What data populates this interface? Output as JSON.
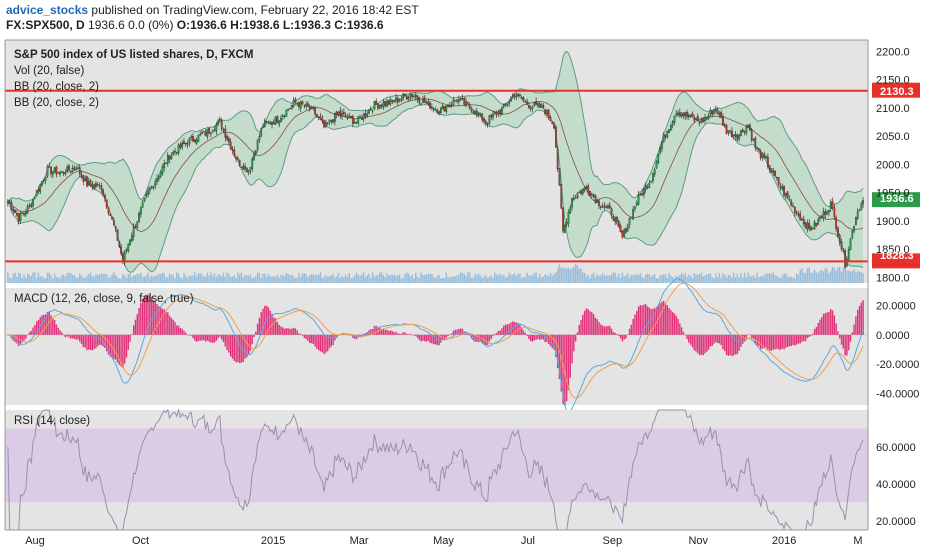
{
  "header": {
    "author": "advice_stocks",
    "published": "published on TradingView.com, February 22, 2016 18:42 EST",
    "symbol": "FX:SPX500, D",
    "quote": "1936.6 0.0 (0%)",
    "ohlc": "O:1936.6 H:1938.6 L:1936.3 C:1936.6"
  },
  "chart_data": [
    {
      "type": "candlestick",
      "title": "S&P 500 index of US listed shares, D, FXCM",
      "studies": [
        "Vol (20, false)",
        "BB (20, close, 2)",
        "BB (20, close, 2)"
      ],
      "ylim": [
        1790,
        2220
      ],
      "y_ticks": [
        "2200.0",
        "2150.0",
        "2100.0",
        "2050.0",
        "2000.0",
        "1950.0",
        "1900.0",
        "1850.0",
        "1800.0"
      ],
      "horizontal_lines": [
        {
          "value": 2130.3,
          "label": "2130.3",
          "color": "#e8302b"
        },
        {
          "value": 1828.3,
          "label": "1828.3",
          "color": "#e8302b"
        }
      ],
      "last_price": {
        "value": 1936.6,
        "label": "1936.6",
        "color": "#2e9b4a"
      },
      "colors": {
        "up": "#2e9b4a",
        "down": "#c0392b",
        "bb_fill": "#a8d5b8",
        "volume": "#5a9fd4"
      },
      "x_ticks": [
        "Aug",
        "Oct",
        "2015",
        "Mar",
        "May",
        "Jul",
        "Sep",
        "Nov",
        "2016",
        "M"
      ],
      "anchors": [
        [
          0,
          1935
        ],
        [
          6,
          1905
        ],
        [
          12,
          1925
        ],
        [
          22,
          1990
        ],
        [
          30,
          1985
        ],
        [
          38,
          1995
        ],
        [
          44,
          1965
        ],
        [
          52,
          1960
        ],
        [
          60,
          1880
        ],
        [
          64,
          1830
        ],
        [
          68,
          1870
        ],
        [
          78,
          1950
        ],
        [
          90,
          2015
        ],
        [
          100,
          2040
        ],
        [
          110,
          2055
        ],
        [
          118,
          2075
        ],
        [
          128,
          2005
        ],
        [
          134,
          1990
        ],
        [
          142,
          2070
        ],
        [
          150,
          2080
        ],
        [
          160,
          2110
        ],
        [
          170,
          2095
        ],
        [
          176,
          2065
        ],
        [
          184,
          2090
        ],
        [
          194,
          2075
        ],
        [
          204,
          2105
        ],
        [
          214,
          2110
        ],
        [
          224,
          2125
        ],
        [
          232,
          2110
        ],
        [
          240,
          2095
        ],
        [
          250,
          2115
        ],
        [
          258,
          2100
        ],
        [
          266,
          2075
        ],
        [
          276,
          2100
        ],
        [
          282,
          2125
        ],
        [
          290,
          2105
        ],
        [
          298,
          2100
        ],
        [
          304,
          2070
        ],
        [
          309,
          1880
        ],
        [
          314,
          1940
        ],
        [
          322,
          1960
        ],
        [
          328,
          1935
        ],
        [
          336,
          1915
        ],
        [
          342,
          1870
        ],
        [
          350,
          1935
        ],
        [
          358,
          1975
        ],
        [
          364,
          2040
        ],
        [
          372,
          2095
        ],
        [
          378,
          2085
        ],
        [
          386,
          2075
        ],
        [
          394,
          2100
        ],
        [
          400,
          2060
        ],
        [
          406,
          2050
        ],
        [
          412,
          2070
        ],
        [
          416,
          2030
        ],
        [
          422,
          2005
        ],
        [
          430,
          1960
        ],
        [
          438,
          1920
        ],
        [
          446,
          1885
        ],
        [
          450,
          1895
        ],
        [
          458,
          1930
        ],
        [
          462,
          1880
        ],
        [
          466,
          1825
        ],
        [
          472,
          1910
        ],
        [
          476,
          1936.6
        ]
      ]
    },
    {
      "type": "line",
      "title": "MACD (12, 26, close, 9, false, true)",
      "ylim": [
        -48,
        32
      ],
      "y_ticks": [
        "20.0000",
        "0.0000",
        "-20.0000",
        "-40.0000"
      ],
      "series": [
        {
          "color": "#5aa8e0"
        },
        {
          "color": "#f0a04b"
        },
        {
          "type": "histogram",
          "color": "#e0337a"
        }
      ]
    },
    {
      "type": "line",
      "title": "RSI (14, close)",
      "ylim": [
        15,
        80
      ],
      "y_ticks": [
        "60.0000",
        "40.0000",
        "20.0000"
      ],
      "band": [
        30,
        70
      ],
      "colors": {
        "line": "#9a8fb0",
        "band": "#d9c3e6"
      }
    }
  ]
}
